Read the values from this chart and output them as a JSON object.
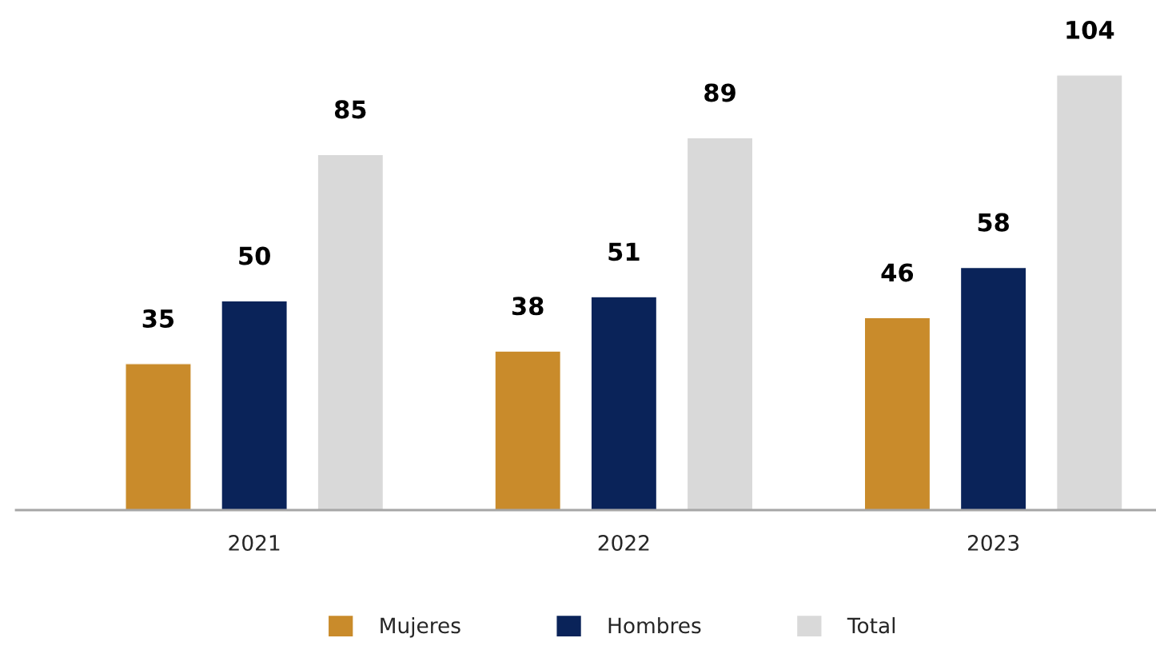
{
  "chart_data": {
    "type": "bar",
    "categories": [
      "2021",
      "2022",
      "2023"
    ],
    "series": [
      {
        "name": "Mujeres",
        "color": "#c98b2b",
        "values": [
          35,
          38,
          46
        ]
      },
      {
        "name": "Hombres",
        "color": "#0a2359",
        "values": [
          50,
          51,
          58
        ]
      },
      {
        "name": "Total",
        "color": "#d9d9d9",
        "values": [
          85,
          89,
          104
        ]
      }
    ],
    "data_labels": true,
    "legend": "bottom",
    "grid": false,
    "tick_labels": "x"
  }
}
